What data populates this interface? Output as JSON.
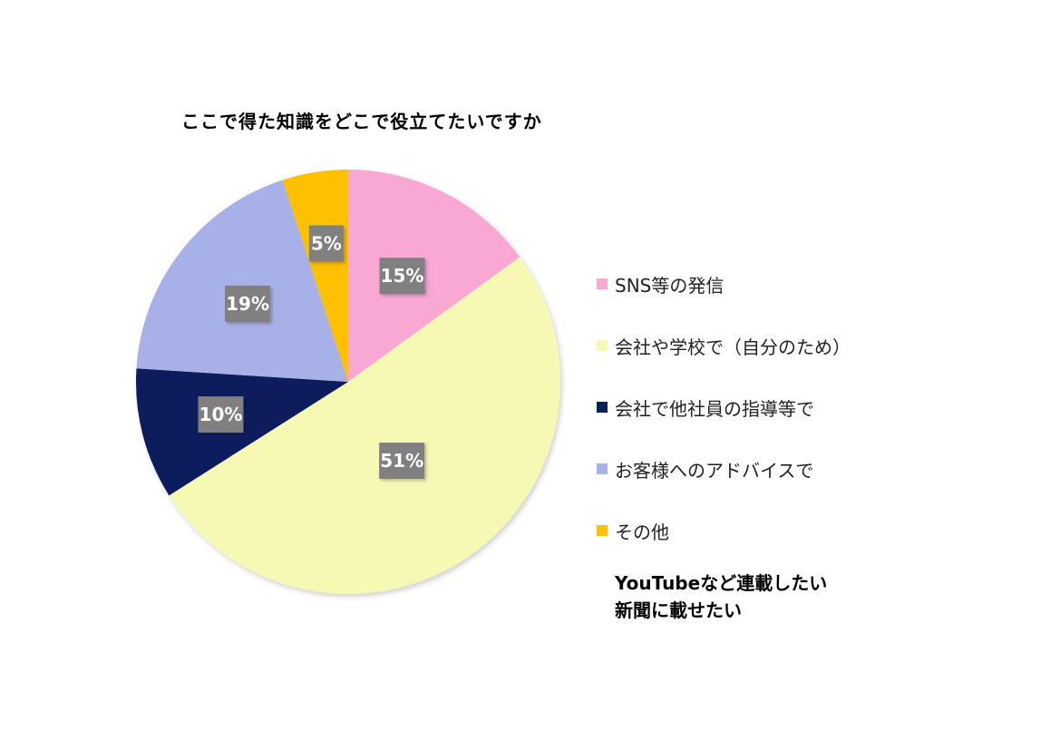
{
  "chart_data": {
    "type": "pie",
    "title": "ここで得た知識をどこで役立てたいですか",
    "slices": [
      {
        "label": "SNS等の発信",
        "value": 15,
        "display": "15%",
        "color": "#f9a8d4"
      },
      {
        "label": "会社や学校で（自分のため）",
        "value": 51,
        "display": "51%",
        "color": "#f5f9b4"
      },
      {
        "label": "会社で他社員の指導等で",
        "value": 10,
        "display": "10%",
        "color": "#0a1f5c"
      },
      {
        "label": "お客様へのアドバイスで",
        "value": 19,
        "display": "19%",
        "color": "#a8b0e8"
      },
      {
        "label": "その他",
        "value": 5,
        "display": "5%",
        "color": "#ffc000"
      }
    ],
    "legend_position": "right",
    "label_box_color": "#808080"
  },
  "note": {
    "line1": "YouTubeなど連載したい",
    "line2": "新聞に載せたい"
  }
}
